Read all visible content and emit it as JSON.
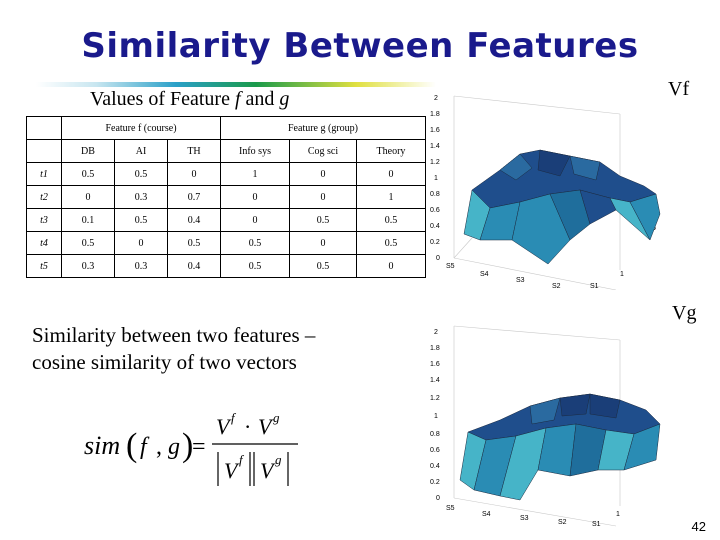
{
  "slide": {
    "title": "Similarity Between Features",
    "subtitle_prefix": "Values of Feature ",
    "subtitle_f": "f",
    "subtitle_mid": " and ",
    "subtitle_g": "g",
    "page_number": "42",
    "paragraph_line1": "Similarity between two features –",
    "paragraph_line2": "cosine similarity of two vectors"
  },
  "table": {
    "group_f": "Feature f (course)",
    "group_g": "Feature g (group)",
    "columns": [
      "DB",
      "AI",
      "TH",
      "Info sys",
      "Cog sci",
      "Theory"
    ],
    "rows": [
      {
        "label": "t1",
        "values": [
          "0.5",
          "0.5",
          "0",
          "1",
          "0",
          "0"
        ]
      },
      {
        "label": "t2",
        "values": [
          "0",
          "0.3",
          "0.7",
          "0",
          "0",
          "1"
        ]
      },
      {
        "label": "t3",
        "values": [
          "0.1",
          "0.5",
          "0.4",
          "0",
          "0.5",
          "0.5"
        ]
      },
      {
        "label": "t4",
        "values": [
          "0.5",
          "0",
          "0.5",
          "0.5",
          "0",
          "0.5"
        ]
      },
      {
        "label": "t5",
        "values": [
          "0.3",
          "0.3",
          "0.4",
          "0.5",
          "0.5",
          "0"
        ]
      }
    ]
  },
  "plots": {
    "top_label": "Vf",
    "bottom_label": "Vg",
    "z_ticks": [
      "2",
      "1.8",
      "1.6",
      "1.4",
      "1.2",
      "1",
      "0.8",
      "0.6",
      "0.4",
      "0.2",
      "0"
    ],
    "s_ticks": [
      "S5",
      "S4",
      "S3",
      "S2",
      "S1"
    ],
    "side_ticks": [
      "1",
      "5"
    ]
  },
  "formula": {
    "lhs": "sim(f, g) =",
    "numerator": "V^f · V^g",
    "denominator": "|V^f||V^g|"
  },
  "colors": {
    "title": "#1a1a8c",
    "surface_dark": "#1f4e8c",
    "surface_mid": "#2a8cb4",
    "surface_light": "#46b4c8"
  }
}
